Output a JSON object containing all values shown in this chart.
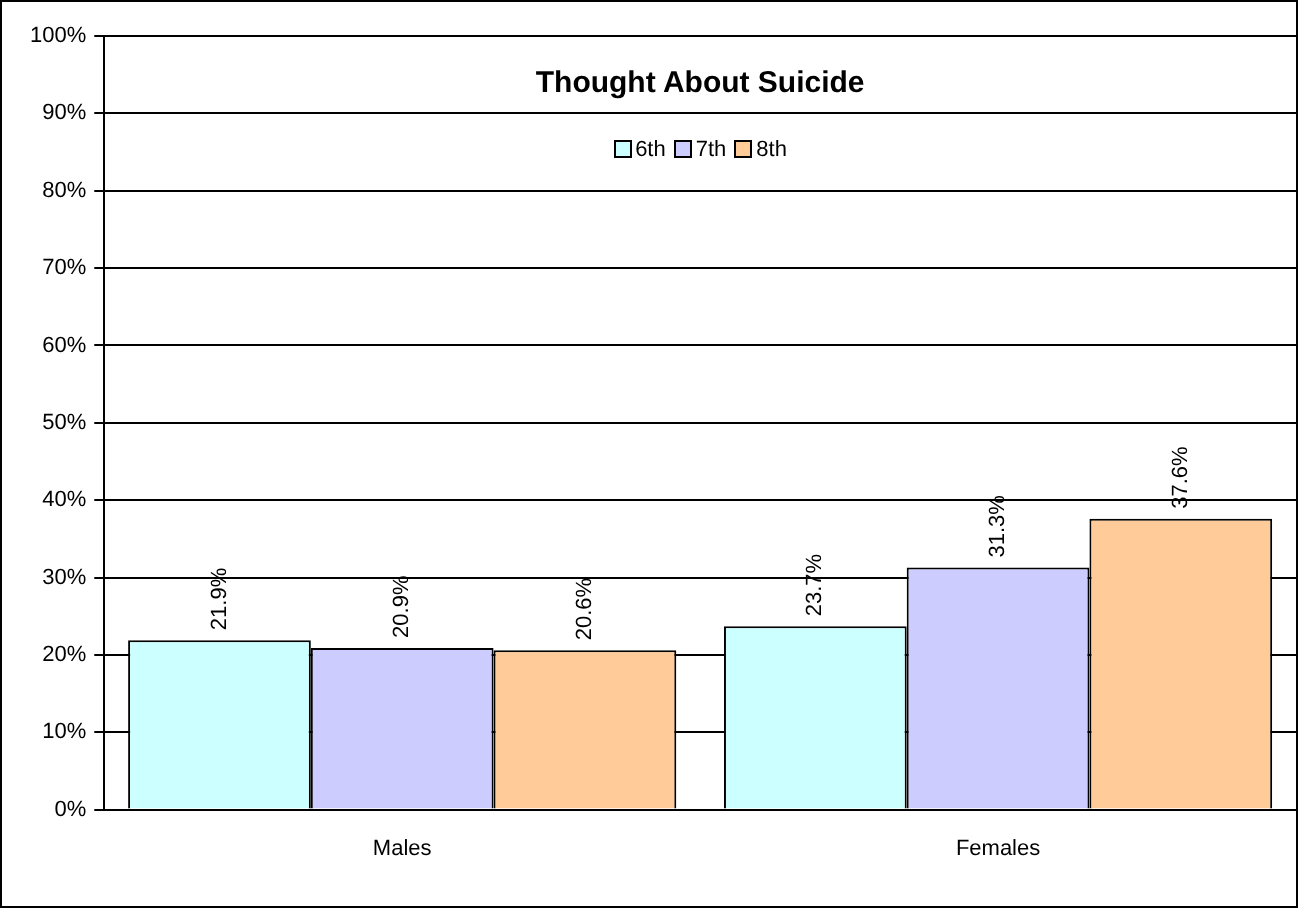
{
  "chart_data": {
    "type": "bar",
    "title": "Thought About Suicide",
    "categories": [
      "Males",
      "Females"
    ],
    "series": [
      {
        "name": "6th",
        "color": "#ccffff",
        "values": [
          21.9,
          23.7
        ],
        "value_labels": [
          "21.9%",
          "23.7%"
        ]
      },
      {
        "name": "7th",
        "color": "#ccccff",
        "values": [
          20.9,
          31.3
        ],
        "value_labels": [
          "20.9%",
          "31.3%"
        ]
      },
      {
        "name": "8th",
        "color": "#ffcc99",
        "values": [
          20.6,
          37.6
        ],
        "value_labels": [
          "20.6%",
          "37.6%"
        ]
      }
    ],
    "ylim": [
      0,
      100
    ],
    "yticks": [
      {
        "value": 0,
        "label": "0%"
      },
      {
        "value": 10,
        "label": "10%"
      },
      {
        "value": 20,
        "label": "20%"
      },
      {
        "value": 30,
        "label": "30%"
      },
      {
        "value": 40,
        "label": "40%"
      },
      {
        "value": 50,
        "label": "50%"
      },
      {
        "value": 60,
        "label": "60%"
      },
      {
        "value": 70,
        "label": "70%"
      },
      {
        "value": 80,
        "label": "80%"
      },
      {
        "value": 90,
        "label": "90%"
      },
      {
        "value": 100,
        "label": "100%"
      }
    ],
    "grid": "y",
    "legend": "top"
  }
}
